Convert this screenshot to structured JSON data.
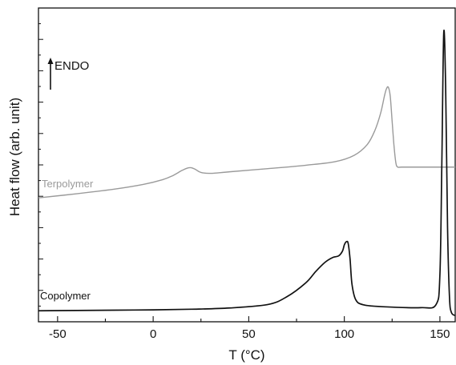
{
  "chart_data": {
    "type": "line",
    "title": "",
    "xlabel": "T (°C)",
    "ylabel": "Heat flow (arb. unit)",
    "xlim": [
      -60,
      158
    ],
    "xticks": [
      -50,
      0,
      50,
      100,
      150
    ],
    "xtick_labels": [
      "-50",
      "0",
      "50",
      "100",
      "150"
    ],
    "ylim": [
      0,
      100
    ],
    "y_tick_labels_shown": false,
    "grid": false,
    "annotation": {
      "text": "ENDO",
      "arrow": "up"
    },
    "series": [
      {
        "name": "Terpolymer",
        "color": "#9a9a9a",
        "x": [
          -60,
          -40,
          -20,
          -5,
          5,
          10,
          15,
          18,
          20,
          22,
          25,
          30,
          40,
          60,
          80,
          95,
          105,
          112,
          116,
          119,
          121,
          122,
          123,
          124,
          125,
          126,
          127,
          128,
          130,
          140,
          158
        ],
        "y": [
          39.5,
          40.8,
          42.3,
          43.8,
          45.3,
          46.5,
          48.2,
          49.0,
          49.1,
          48.6,
          47.6,
          47.3,
          47.8,
          48.8,
          49.9,
          51.0,
          53.0,
          56.5,
          61.0,
          66.5,
          72.0,
          74.2,
          74.8,
          72.0,
          64.0,
          56.0,
          50.5,
          49.3,
          49.3,
          49.3,
          49.3
        ]
      },
      {
        "name": "Copolymer",
        "color": "#111111",
        "x": [
          -60,
          -40,
          -20,
          0,
          20,
          40,
          60,
          70,
          80,
          85,
          90,
          94,
          97,
          99,
          100,
          101,
          102,
          103,
          104,
          106,
          110,
          120,
          140,
          148,
          150,
          151,
          152,
          153,
          154,
          155,
          156,
          158
        ],
        "y": [
          3.5,
          3.6,
          3.7,
          3.8,
          4.0,
          4.4,
          5.5,
          8.0,
          12.5,
          16.0,
          19.0,
          20.5,
          21.0,
          22.5,
          24.5,
          25.5,
          25.0,
          20.0,
          12.0,
          7.0,
          5.4,
          4.8,
          4.5,
          5.5,
          15.0,
          50.0,
          92.0,
          75.0,
          30.0,
          8.0,
          3.0,
          2.0
        ]
      }
    ],
    "series_labels": [
      "Terpolymer",
      "Copolymer"
    ]
  }
}
